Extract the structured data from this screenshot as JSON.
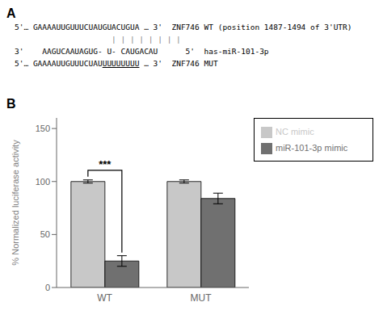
{
  "chart_data": {
    "type": "bar",
    "categories": [
      "WT",
      "MUT"
    ],
    "series": [
      {
        "name": "NC mimic",
        "color": "#c8c8c8",
        "values": [
          100,
          100
        ],
        "errors": [
          1.5,
          1.5
        ]
      },
      {
        "name": "miR-101-3p mimic",
        "color": "#707070",
        "values": [
          25,
          84
        ],
        "errors": [
          5,
          5
        ]
      }
    ],
    "ylabel": "% Normalized luciferase activity",
    "ylim": [
      0,
      160
    ],
    "yticks": [
      0,
      50,
      100,
      150
    ],
    "grid": false,
    "legend": "right",
    "annotations": {
      "panel_labels": [
        "A",
        "B"
      ],
      "sequence_lines": [
        "5'… GAAAAUUGUUUCUAUGUACUGUA … 3'  ZNF746 WT (position 1487-1494 of 3'UTR)",
        "| | | | | | | |",
        "3'    AAGUCAAUAGUG- U- CAUGACAU      5'  has-miR-101-3p",
        [
          "5'… GAAAAUUGUUUCUAU",
          "UUUUUUUU",
          " … 3'  ZNF746 MUT"
        ]
      ],
      "significance": {
        "text": "***",
        "category": "WT"
      }
    }
  }
}
